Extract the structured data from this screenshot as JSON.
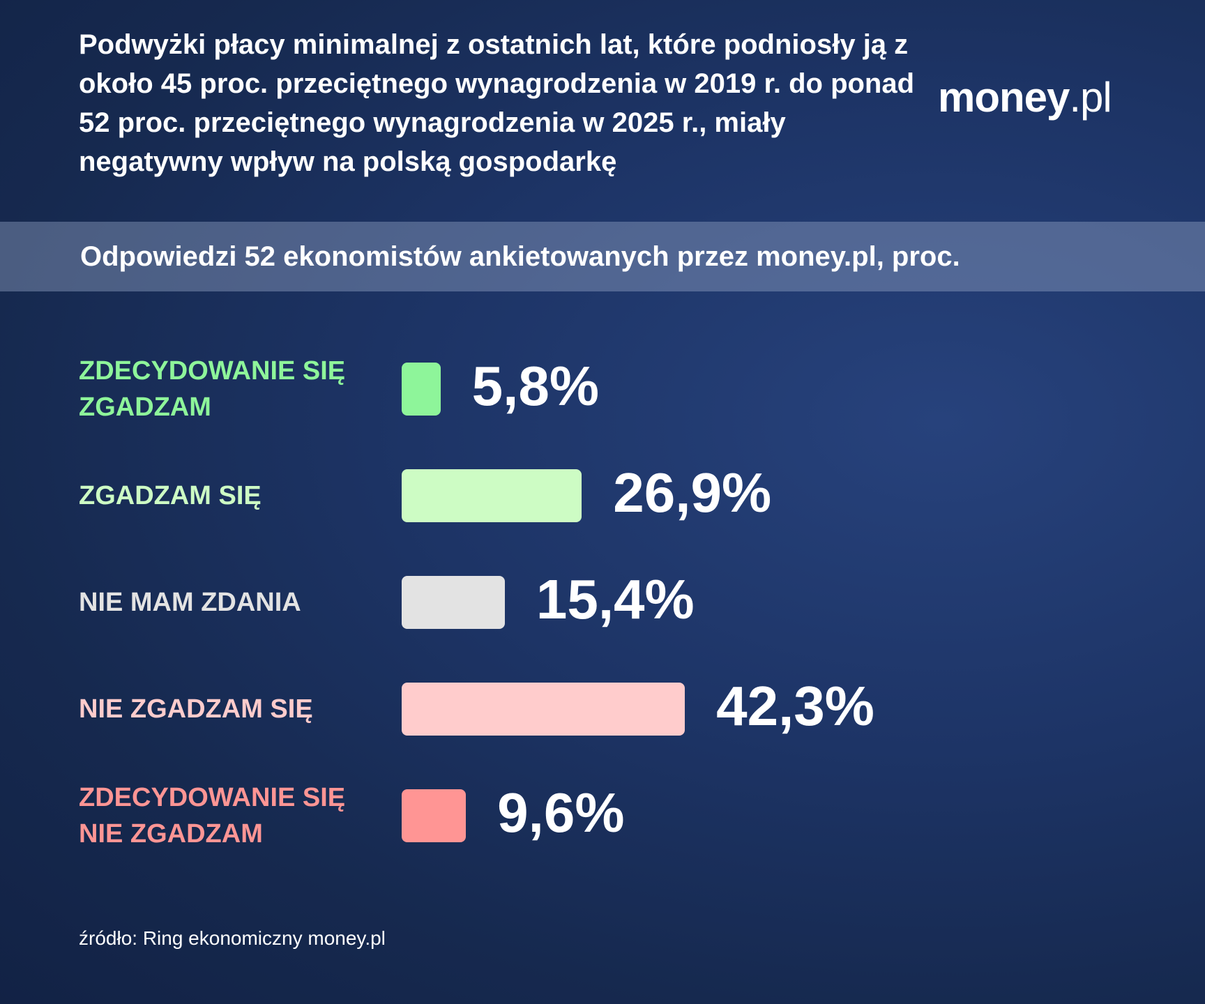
{
  "header": {
    "title": "Podwyżki płacy minimalnej z ostatnich lat, które podniosły ją z około 45 proc. przeciętnego wynagrodzenia w 2019 r. do ponad 52 proc. przeciętnego wynagrodzenia w 2025 r., miały negatywny wpływ na polską gospodarkę",
    "logo_main": "money",
    "logo_suffix": ".pl"
  },
  "subtitle": "Odpowiedzi 52 ekonomistów ankietowanych przez money.pl, proc.",
  "source": "źródło: Ring ekonomiczny money.pl",
  "colors": {
    "background": "#1d3466",
    "strongly_agree": "#8ef59a",
    "agree": "#cdfcc4",
    "no_opinion": "#e3e3e3",
    "disagree": "#ffcccc",
    "strongly_disagree": "#ff9594"
  },
  "chart_data": {
    "type": "bar",
    "orientation": "horizontal",
    "categories": [
      "ZDECYDOWANIE SIĘ ZGADZAM",
      "ZGADZAM SIĘ",
      "NIE MAM ZDANIA",
      "NIE ZGADZAM SIĘ",
      "ZDECYDOWANIE SIĘ NIE ZGADZAM"
    ],
    "values": [
      5.8,
      26.9,
      15.4,
      42.3,
      9.6
    ],
    "value_labels": [
      "5,8%",
      "26,9%",
      "15,4%",
      "42,3%",
      "9,6%"
    ],
    "bar_colors": [
      "#8ef59a",
      "#cdfcc4",
      "#e3e3e3",
      "#ffcccc",
      "#ff9594"
    ],
    "label_colors": [
      "#8ef59a",
      "#cdfcc4",
      "#e3e3e3",
      "#ffcccc",
      "#ff9594"
    ],
    "title": "Odpowiedzi 52 ekonomistów ankietowanych przez money.pl, proc.",
    "grid": false,
    "legend": "none"
  }
}
